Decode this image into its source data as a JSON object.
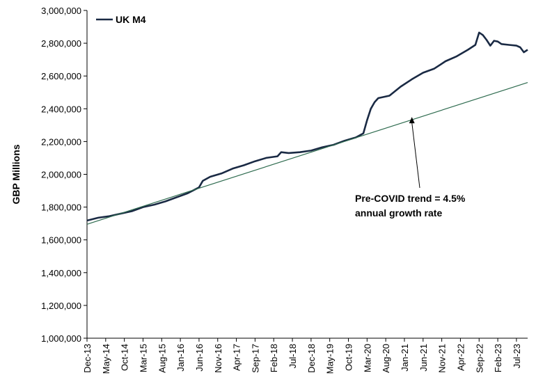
{
  "chart_data": {
    "type": "line",
    "ylabel": "GBP Millions",
    "ylim": [
      1000000,
      3000000
    ],
    "y_ticks": [
      "1,000,000",
      "1,200,000",
      "1,400,000",
      "1,600,000",
      "1,800,000",
      "2,000,000",
      "2,200,000",
      "2,400,000",
      "2,600,000",
      "2,800,000",
      "3,000,000"
    ],
    "x_ticks": [
      "Dec-13",
      "May-14",
      "Oct-14",
      "Mar-15",
      "Aug-15",
      "Jan-16",
      "Jun-16",
      "Nov-16",
      "Apr-17",
      "Sep-17",
      "Feb-18",
      "Jul-18",
      "Dec-18",
      "May-19",
      "Oct-19",
      "Mar-20",
      "Aug-20",
      "Jan-21",
      "Jun-21",
      "Nov-21",
      "Apr-22",
      "Sep-22",
      "Feb-23",
      "Jul-23"
    ],
    "x_range": [
      "Dec-13",
      "Oct-23"
    ],
    "grid": false,
    "legend_position": "top-left",
    "series": [
      {
        "name": "UK M4",
        "color": "#1a2a44",
        "points": [
          [
            "Dec-13",
            1718000
          ],
          [
            "Mar-14",
            1735000
          ],
          [
            "Jun-14",
            1745000
          ],
          [
            "Sep-14",
            1760000
          ],
          [
            "Dec-14",
            1775000
          ],
          [
            "Mar-15",
            1800000
          ],
          [
            "Jun-15",
            1815000
          ],
          [
            "Sep-15",
            1835000
          ],
          [
            "Dec-15",
            1860000
          ],
          [
            "Mar-16",
            1885000
          ],
          [
            "Jun-16",
            1920000
          ],
          [
            "Jul-16",
            1960000
          ],
          [
            "Sep-16",
            1985000
          ],
          [
            "Dec-16",
            2005000
          ],
          [
            "Mar-17",
            2035000
          ],
          [
            "Jun-17",
            2055000
          ],
          [
            "Sep-17",
            2080000
          ],
          [
            "Dec-17",
            2100000
          ],
          [
            "Mar-18",
            2110000
          ],
          [
            "Apr-18",
            2135000
          ],
          [
            "Jun-18",
            2130000
          ],
          [
            "Sep-18",
            2135000
          ],
          [
            "Dec-18",
            2145000
          ],
          [
            "Mar-19",
            2165000
          ],
          [
            "Jun-19",
            2180000
          ],
          [
            "Sep-19",
            2205000
          ],
          [
            "Dec-19",
            2225000
          ],
          [
            "Feb-20",
            2250000
          ],
          [
            "Mar-20",
            2330000
          ],
          [
            "Apr-20",
            2400000
          ],
          [
            "May-20",
            2440000
          ],
          [
            "Jun-20",
            2465000
          ],
          [
            "Sep-20",
            2480000
          ],
          [
            "Dec-20",
            2535000
          ],
          [
            "Mar-21",
            2580000
          ],
          [
            "Jun-21",
            2620000
          ],
          [
            "Sep-21",
            2645000
          ],
          [
            "Dec-21",
            2690000
          ],
          [
            "Mar-22",
            2720000
          ],
          [
            "Jun-22",
            2760000
          ],
          [
            "Aug-22",
            2790000
          ],
          [
            "Sep-22",
            2865000
          ],
          [
            "Oct-22",
            2850000
          ],
          [
            "Nov-22",
            2820000
          ],
          [
            "Dec-22",
            2785000
          ],
          [
            "Jan-23",
            2815000
          ],
          [
            "Feb-23",
            2810000
          ],
          [
            "Mar-23",
            2795000
          ],
          [
            "May-23",
            2790000
          ],
          [
            "Jul-23",
            2785000
          ],
          [
            "Aug-23",
            2775000
          ],
          [
            "Sep-23",
            2745000
          ],
          [
            "Oct-23",
            2760000
          ]
        ]
      },
      {
        "name": "",
        "color": "#2e6b4f",
        "points": [
          [
            "Dec-13",
            1695000
          ],
          [
            "Oct-23",
            2560000
          ]
        ]
      }
    ],
    "annotation": {
      "lines": [
        "Pre-COVID trend = 4.5%",
        "annual growth rate"
      ],
      "arrow_to": [
        "Mar-21",
        2350000
      ]
    }
  }
}
